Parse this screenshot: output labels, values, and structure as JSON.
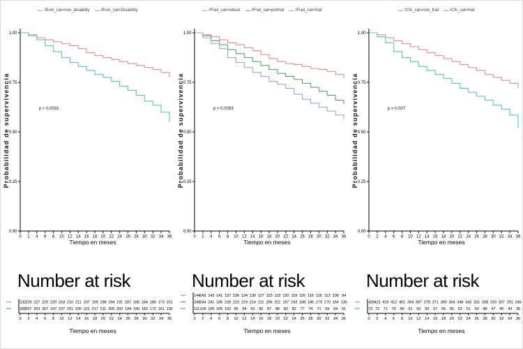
{
  "figure": {
    "ylabel": "Probabilidad de supervivencia",
    "xlabel": "Tiempo en meses",
    "risk_heading": "Number at risk",
    "x_ticks": [
      0,
      2,
      4,
      6,
      8,
      10,
      12,
      14,
      16,
      18,
      20,
      22,
      24,
      26,
      28,
      30,
      32,
      34,
      36
    ],
    "y_ticks": [
      "1.00",
      "0.75",
      "0.50",
      "0.25",
      "0.00"
    ],
    "y_tick_values": [
      1.0,
      0.75,
      0.5,
      0.25,
      0.0
    ]
  },
  "chart_data": [
    {
      "type": "line",
      "subtype": "kaplan-meier-step",
      "x": [
        0,
        2,
        4,
        6,
        8,
        10,
        12,
        14,
        16,
        18,
        20,
        22,
        24,
        26,
        28,
        30,
        32,
        34,
        36
      ],
      "xlabel": "Tiempo en meses",
      "ylabel": "Probabilidad de supervivencia",
      "ylim": [
        0,
        1
      ],
      "legend_position": "top",
      "grid": false,
      "p_value": "p < 0.0001",
      "series": [
        {
          "name": "rEvm_cat=non_disability",
          "color": "#ee8a7f",
          "values": [
            1.0,
            0.99,
            0.975,
            0.965,
            0.955,
            0.945,
            0.935,
            0.92,
            0.9,
            0.885,
            0.875,
            0.865,
            0.855,
            0.845,
            0.835,
            0.825,
            0.815,
            0.8,
            0.775
          ]
        },
        {
          "name": "rEvm_cat=Disability",
          "color": "#53c4c1",
          "values": [
            1.0,
            0.985,
            0.965,
            0.935,
            0.905,
            0.875,
            0.85,
            0.83,
            0.81,
            0.79,
            0.775,
            0.755,
            0.73,
            0.71,
            0.685,
            0.655,
            0.635,
            0.6,
            0.55
          ]
        }
      ],
      "risk_table": {
        "title": "Number at risk",
        "rows": [
          {
            "name": "rEvm_cat=non_disability",
            "color": "#ee8a7f",
            "counts": [
              232,
              229,
              227,
              225,
              220,
              218,
              216,
              211,
              207,
              199,
              198,
              194,
              191,
              187,
              186,
              184,
              180,
              173,
              151
            ]
          },
          {
            "name": "rEvm_cat=Disability",
            "color": "#53c4c1",
            "counts": [
              268,
              267,
              263,
              257,
              247,
              237,
              231,
              226,
              221,
              217,
              211,
              206,
              202,
              194,
              190,
              182,
              172,
              161,
              130
            ]
          }
        ]
      }
    },
    {
      "type": "line",
      "subtype": "kaplan-meier-step",
      "x": [
        0,
        2,
        4,
        6,
        8,
        10,
        12,
        14,
        16,
        18,
        20,
        22,
        24,
        26,
        28,
        30,
        32,
        34,
        36
      ],
      "xlabel": "Tiempo en meses",
      "ylabel": "Probabilidad de supervivencia",
      "ylim": [
        0,
        1
      ],
      "legend_position": "top",
      "grid": false,
      "p_value": "p = 0.0083",
      "series": [
        {
          "name": "rFrail_cat=robust",
          "color": "#ee8a7f",
          "values": [
            1.0,
            0.99,
            0.98,
            0.965,
            0.95,
            0.94,
            0.925,
            0.91,
            0.89,
            0.87,
            0.855,
            0.845,
            0.84,
            0.83,
            0.82,
            0.815,
            0.805,
            0.79,
            0.77
          ]
        },
        {
          "name": "rFrail_cat=prefrail",
          "color": "#4fa863",
          "values": [
            1.0,
            0.985,
            0.96,
            0.94,
            0.915,
            0.895,
            0.875,
            0.855,
            0.835,
            0.815,
            0.795,
            0.78,
            0.765,
            0.745,
            0.725,
            0.705,
            0.685,
            0.66,
            0.64
          ]
        },
        {
          "name": "rFrail_cat=frail",
          "color": "#90a8e0",
          "values": [
            1.0,
            0.975,
            0.945,
            0.92,
            0.875,
            0.85,
            0.825,
            0.8,
            0.78,
            0.755,
            0.74,
            0.72,
            0.69,
            0.665,
            0.645,
            0.625,
            0.605,
            0.585,
            0.565
          ]
        }
      ],
      "risk_table": {
        "title": "Number at risk",
        "rows": [
          {
            "name": "rFrail_cat=robust",
            "color": "#ee8a7f",
            "counts": [
              144,
              143,
              143,
              141,
              137,
              136,
              134,
              130,
              127,
              123,
              122,
              120,
              119,
              116,
              116,
              116,
              113,
              106,
              94
            ]
          },
          {
            "name": "rFrail_cat=prefrail",
            "color": "#4fa863",
            "counts": [
              249,
              244,
              241,
              236,
              228,
              223,
              219,
              214,
              211,
              206,
              201,
              197,
              193,
              188,
              186,
              179,
              170,
              164,
              136
            ]
          },
          {
            "name": "rFrail_cat=frail",
            "color": "#90a8e0",
            "counts": [
              111,
              109,
              106,
              105,
              102,
              96,
              94,
              93,
              90,
              87,
              86,
              83,
              82,
              77,
              74,
              71,
              69,
              64,
              51
            ]
          }
        ]
      }
    },
    {
      "type": "line",
      "subtype": "kaplan-meier-step",
      "x": [
        0,
        2,
        4,
        6,
        8,
        10,
        12,
        14,
        16,
        18,
        20,
        22,
        24,
        26,
        28,
        30,
        32,
        34,
        36
      ],
      "xlabel": "Tiempo en meses",
      "ylabel": "Probabilidad de supervivencia",
      "ylim": [
        0,
        1
      ],
      "legend_position": "top",
      "grid": false,
      "p_value": "p = 0.007",
      "series": [
        {
          "name": "rCfs_cat=non_frail",
          "color": "#ee8a7f",
          "values": [
            1.0,
            0.99,
            0.975,
            0.96,
            0.945,
            0.93,
            0.915,
            0.9,
            0.885,
            0.87,
            0.855,
            0.84,
            0.825,
            0.81,
            0.79,
            0.775,
            0.76,
            0.745,
            0.72
          ]
        },
        {
          "name": "rCfs_cat=frail",
          "color": "#53c4c1",
          "values": [
            1.0,
            0.98,
            0.95,
            0.905,
            0.875,
            0.855,
            0.83,
            0.81,
            0.79,
            0.77,
            0.745,
            0.72,
            0.7,
            0.68,
            0.66,
            0.635,
            0.615,
            0.585,
            0.52
          ]
        }
      ],
      "risk_table": {
        "title": "Number at risk",
        "rows": [
          {
            "name": "rCfs_cat=non_frail",
            "color": "#ee8a7f",
            "counts": [
              426,
              423,
              419,
              412,
              401,
              394,
              387,
              378,
              371,
              360,
              354,
              348,
              342,
              331,
              328,
              319,
              307,
              291,
              246
            ]
          },
          {
            "name": "rCfs_cat=frail",
            "color": "#53c4c1",
            "counts": [
              73,
              73,
              71,
              70,
              66,
              61,
              60,
              59,
              57,
              56,
              55,
              52,
              51,
              50,
              48,
              47,
              45,
              43,
              35
            ]
          }
        ]
      }
    }
  ]
}
